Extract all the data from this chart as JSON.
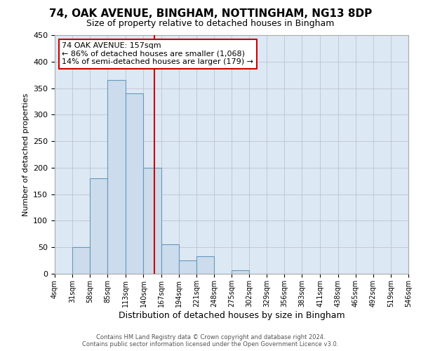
{
  "title": "74, OAK AVENUE, BINGHAM, NOTTINGHAM, NG13 8DP",
  "subtitle": "Size of property relative to detached houses in Bingham",
  "xlabel": "Distribution of detached houses by size in Bingham",
  "ylabel": "Number of detached properties",
  "bin_edges": [
    4,
    31,
    58,
    85,
    113,
    140,
    167,
    194,
    221,
    248,
    275,
    302,
    329,
    356,
    383,
    411,
    438,
    465,
    492,
    519,
    546
  ],
  "bin_labels": [
    "4sqm",
    "31sqm",
    "58sqm",
    "85sqm",
    "113sqm",
    "140sqm",
    "167sqm",
    "194sqm",
    "221sqm",
    "248sqm",
    "275sqm",
    "302sqm",
    "329sqm",
    "356sqm",
    "383sqm",
    "411sqm",
    "438sqm",
    "465sqm",
    "492sqm",
    "519sqm",
    "546sqm"
  ],
  "bar_heights": [
    0,
    50,
    180,
    365,
    340,
    200,
    55,
    25,
    33,
    0,
    6,
    0,
    0,
    0,
    0,
    0,
    0,
    0,
    0,
    0
  ],
  "bar_color": "#ccdcec",
  "bar_edge_color": "#6699bb",
  "property_value": 157,
  "vline_color": "#cc0000",
  "ylim": [
    0,
    450
  ],
  "yticks": [
    0,
    50,
    100,
    150,
    200,
    250,
    300,
    350,
    400,
    450
  ],
  "annotation_title": "74 OAK AVENUE: 157sqm",
  "annotation_line1": "← 86% of detached houses are smaller (1,068)",
  "annotation_line2": "14% of semi-detached houses are larger (179) →",
  "annotation_box_color": "#ffffff",
  "annotation_box_edge_color": "#cc0000",
  "footer_line1": "Contains HM Land Registry data © Crown copyright and database right 2024.",
  "footer_line2": "Contains public sector information licensed under the Open Government Licence v3.0.",
  "background_color": "#dce8f4",
  "title_fontsize": 11,
  "subtitle_fontsize": 9,
  "annotation_fontsize": 8,
  "xlabel_fontsize": 9,
  "ylabel_fontsize": 8,
  "ytick_fontsize": 8,
  "xtick_fontsize": 7
}
